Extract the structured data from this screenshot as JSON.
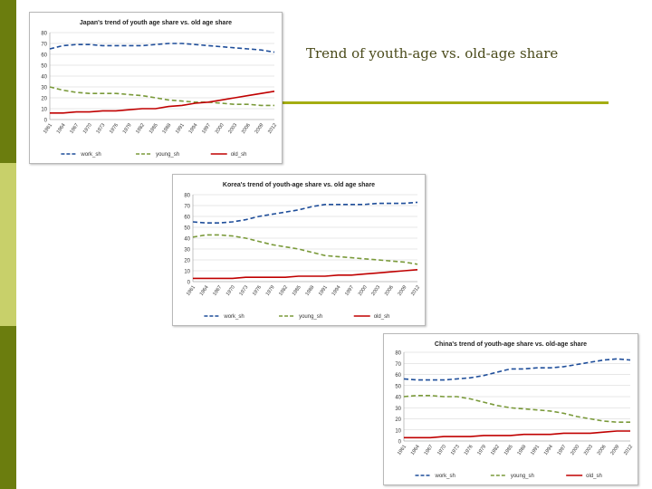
{
  "slide": {
    "title": "Trend of youth-age vs. old-age share",
    "colors": {
      "stripe_dark": "#6b7d0e",
      "stripe_light": "#c8d06a",
      "accent_rule": "#a4ad12",
      "title_text": "#4a4a1a"
    }
  },
  "chart_data": [
    {
      "type": "line",
      "title": "Japan's trend of youth age share vs. old age share",
      "x": [
        "1961",
        "1964",
        "1967",
        "1970",
        "1973",
        "1976",
        "1979",
        "1982",
        "1985",
        "1988",
        "1991",
        "1994",
        "1997",
        "2000",
        "2003",
        "2006",
        "2009",
        "2012"
      ],
      "series": [
        {
          "name": "work_sh",
          "color": "#1f4e9a",
          "dash": "5,3",
          "values": [
            65,
            68,
            69,
            69,
            68,
            68,
            68,
            68,
            69,
            70,
            70,
            69,
            68,
            67,
            66,
            65,
            64,
            62
          ]
        },
        {
          "name": "young_sh",
          "color": "#7a9a3a",
          "dash": "5,3",
          "values": [
            30,
            27,
            25,
            24,
            24,
            24,
            23,
            22,
            20,
            18,
            17,
            16,
            16,
            15,
            14,
            14,
            13,
            13
          ]
        },
        {
          "name": "old_sh",
          "color": "#c00000",
          "dash": "",
          "values": [
            6,
            6,
            7,
            7,
            8,
            8,
            9,
            10,
            10,
            12,
            13,
            15,
            16,
            18,
            20,
            22,
            24,
            26
          ]
        }
      ],
      "ylim": [
        0,
        80
      ],
      "yticks": [
        0,
        10,
        20,
        30,
        40,
        50,
        60,
        70,
        80
      ],
      "grid": true,
      "legend": "bottom"
    },
    {
      "type": "line",
      "title": "Korea's trend of youth-age share vs. old age share",
      "x": [
        "1961",
        "1964",
        "1967",
        "1970",
        "1973",
        "1976",
        "1979",
        "1982",
        "1985",
        "1988",
        "1991",
        "1994",
        "1997",
        "2000",
        "2003",
        "2006",
        "2009",
        "2012"
      ],
      "series": [
        {
          "name": "work_sh",
          "color": "#1f4e9a",
          "dash": "5,3",
          "values": [
            55,
            54,
            54,
            55,
            57,
            60,
            62,
            64,
            66,
            69,
            71,
            71,
            71,
            71,
            72,
            72,
            72,
            73
          ]
        },
        {
          "name": "young_sh",
          "color": "#7a9a3a",
          "dash": "5,3",
          "values": [
            41,
            43,
            43,
            42,
            40,
            37,
            34,
            32,
            30,
            27,
            24,
            23,
            22,
            21,
            20,
            19,
            18,
            16
          ]
        },
        {
          "name": "old_sh",
          "color": "#c00000",
          "dash": "",
          "values": [
            3,
            3,
            3,
            3,
            4,
            4,
            4,
            4,
            5,
            5,
            5,
            6,
            6,
            7,
            8,
            9,
            10,
            11
          ]
        }
      ],
      "ylim": [
        0,
        80
      ],
      "yticks": [
        0,
        10,
        20,
        30,
        40,
        50,
        60,
        70,
        80
      ],
      "grid": true,
      "legend": "bottom"
    },
    {
      "type": "line",
      "title": "China's trend of youth-age share vs. old-age share",
      "x": [
        "1961",
        "1964",
        "1967",
        "1970",
        "1973",
        "1976",
        "1979",
        "1982",
        "1985",
        "1988",
        "1991",
        "1994",
        "1997",
        "2000",
        "2003",
        "2006",
        "2009",
        "2012"
      ],
      "series": [
        {
          "name": "work_sh",
          "color": "#1f4e9a",
          "dash": "5,3",
          "values": [
            56,
            55,
            55,
            55,
            56,
            57,
            59,
            62,
            65,
            65,
            66,
            66,
            67,
            69,
            71,
            73,
            74,
            73
          ]
        },
        {
          "name": "young_sh",
          "color": "#7a9a3a",
          "dash": "5,3",
          "values": [
            40,
            41,
            41,
            40,
            40,
            38,
            35,
            32,
            30,
            29,
            28,
            27,
            25,
            22,
            20,
            18,
            17,
            17
          ]
        },
        {
          "name": "old_sh",
          "color": "#c00000",
          "dash": "",
          "values": [
            3,
            3,
            3,
            4,
            4,
            4,
            5,
            5,
            5,
            6,
            6,
            6,
            7,
            7,
            7,
            8,
            9,
            9
          ]
        }
      ],
      "ylim": [
        0,
        80
      ],
      "yticks": [
        0,
        10,
        20,
        30,
        40,
        50,
        60,
        70,
        80
      ],
      "grid": true,
      "legend": "bottom"
    }
  ]
}
